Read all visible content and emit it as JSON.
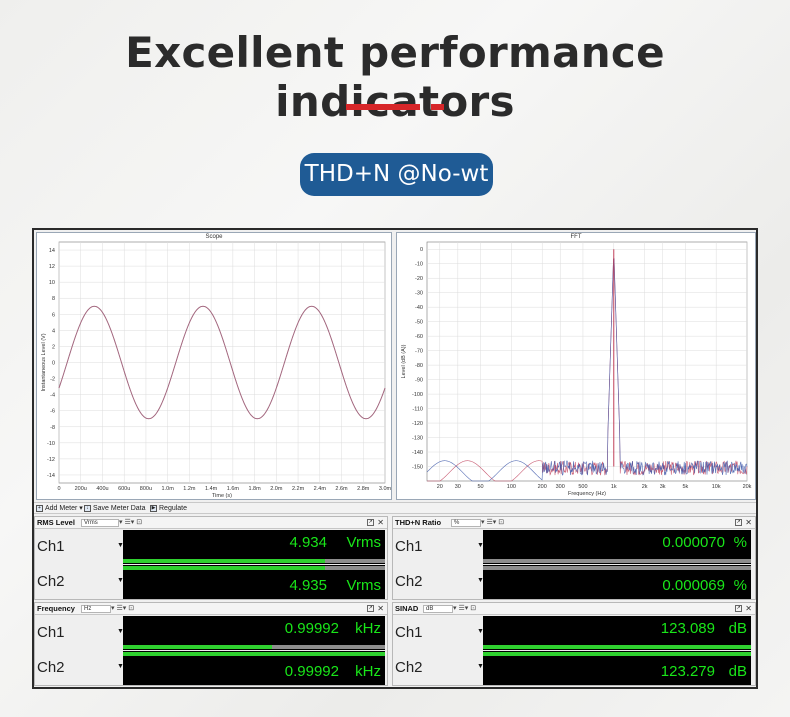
{
  "banner": {
    "title": "Excellent performance indicators",
    "pill": "THD+N @No-wt",
    "accent": "#d72629",
    "pill_color": "#1f5b95"
  },
  "scope": {
    "title": "Scope",
    "xlabel": "Time (s)",
    "ylabel": "Instantaneous Level (V)",
    "xticks": [
      "0",
      "200u",
      "400u",
      "600u",
      "800u",
      "1.0m",
      "1.2m",
      "1.4m",
      "1.6m",
      "1.8m",
      "2.0m",
      "2.2m",
      "2.4m",
      "2.6m",
      "2.8m",
      "3.0m"
    ],
    "yticks": [
      "14",
      "12",
      "10",
      "8",
      "6",
      "4",
      "2",
      "0",
      "-2",
      "-4",
      "-6",
      "-8",
      "-10",
      "-12",
      "-14"
    ]
  },
  "fft": {
    "title": "FFT",
    "xlabel": "Frequency (Hz)",
    "ylabel": "Level (dB (A))",
    "xticks": [
      "20",
      "30",
      "50",
      "100",
      "200",
      "300",
      "500",
      "1k",
      "2k",
      "3k",
      "5k",
      "10k",
      "20k"
    ],
    "yticks": [
      "0",
      "-10",
      "-20",
      "-30",
      "-40",
      "-50",
      "-60",
      "-70",
      "-80",
      "-90",
      "-100",
      "-110",
      "-120",
      "-130",
      "-140",
      "-150"
    ]
  },
  "chart_data": [
    {
      "type": "line",
      "title": "Scope",
      "xlabel": "Time (s)",
      "ylabel": "Instantaneous Level (V)",
      "xlim": [
        0,
        0.003
      ],
      "ylim": [
        -15,
        15
      ],
      "series": [
        {
          "name": "Ch1",
          "waveform": "sine",
          "amplitude": 7.0,
          "frequency_hz": 1000,
          "color": "#c0505a"
        },
        {
          "name": "Ch2",
          "waveform": "sine",
          "amplitude": 7.0,
          "frequency_hz": 1000,
          "color": "#8a7a9c"
        }
      ]
    },
    {
      "type": "line",
      "title": "FFT",
      "xlabel": "Frequency (Hz)",
      "ylabel": "Level (dB (A))",
      "xscale": "log",
      "xlim": [
        15,
        20000
      ],
      "ylim": [
        -160,
        5
      ],
      "peak": {
        "x": 1000,
        "y": 0
      },
      "noise_floor_db": -150,
      "series": [
        {
          "name": "Ch1",
          "color": "#c0405a"
        },
        {
          "name": "Ch2",
          "color": "#3a55a8"
        }
      ]
    }
  ],
  "toolbar": {
    "add_meter": "Add Meter",
    "save_meter": "Save Meter Data",
    "regulate": "Regulate"
  },
  "meters": {
    "rms": {
      "name": "RMS Level",
      "unit": "Vrms",
      "ch1": {
        "label": "Ch1",
        "value": "4.934",
        "unit": "Vrms",
        "bar": 0.77
      },
      "ch2": {
        "label": "Ch2",
        "value": "4.935",
        "unit": "Vrms",
        "bar": 0.77
      }
    },
    "thd": {
      "name": "THD+N Ratio",
      "unit": "%",
      "ch1": {
        "label": "Ch1",
        "value": "0.000070",
        "unit": "%",
        "bar": 0.0
      },
      "ch2": {
        "label": "Ch2",
        "value": "0.000069",
        "unit": "%",
        "bar": 0.0
      }
    },
    "freq": {
      "name": "Frequency",
      "unit": "Hz",
      "ch1": {
        "label": "Ch1",
        "value": "0.99992",
        "unit": "kHz",
        "bar": 0.57
      },
      "ch2": {
        "label": "Ch2",
        "value": "0.99992",
        "unit": "kHz",
        "bar": 1.0
      }
    },
    "sinad": {
      "name": "SINAD",
      "unit": "dB",
      "ch1": {
        "label": "Ch1",
        "value": "123.089",
        "unit": "dB",
        "bar": 1.0
      },
      "ch2": {
        "label": "Ch2",
        "value": "123.279",
        "unit": "dB",
        "bar": 1.0
      }
    }
  }
}
